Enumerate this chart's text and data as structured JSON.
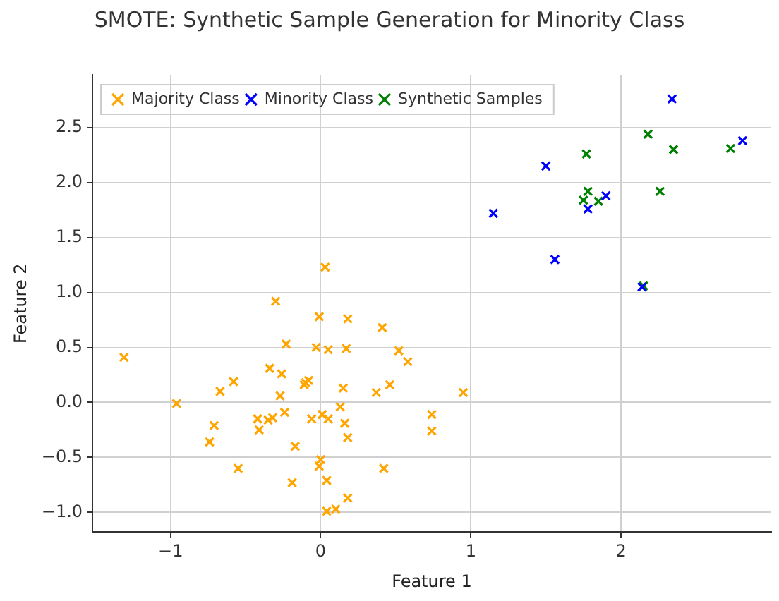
{
  "chart_data": {
    "type": "scatter",
    "title": "SMOTE: Synthetic Sample Generation for Minority Class",
    "xlabel": "Feature 1",
    "ylabel": "Feature 2",
    "xlim": [
      -1.52,
      3.0
    ],
    "ylim": [
      -1.18,
      2.98
    ],
    "xticks": [
      {
        "value": -1,
        "label": "−1"
      },
      0,
      1,
      2
    ],
    "yticks": [
      {
        "value": -1,
        "label": "−1.0"
      },
      {
        "value": -0.5,
        "label": "−0.5"
      },
      {
        "value": 0,
        "label": "0.0"
      },
      0.5,
      {
        "value": 1,
        "label": "1.0"
      },
      1.5,
      {
        "value": 2,
        "label": "2.0"
      },
      2.5
    ],
    "grid": true,
    "legend": "top left",
    "marker": "cross",
    "series": [
      {
        "name": "Majority Class",
        "color": "#ffa500",
        "x": [
          -1.31,
          0.03,
          -0.3,
          -0.01,
          0.18,
          0.41,
          -0.23,
          -0.03,
          0.05,
          0.17,
          0.52,
          0.58,
          -0.34,
          -0.26,
          -0.58,
          -0.67,
          -0.1,
          -0.08,
          -0.11,
          -0.27,
          0.15,
          0.37,
          0.46,
          0.95,
          -0.96,
          0.13,
          -0.24,
          -0.42,
          -0.32,
          -0.35,
          -0.06,
          0.01,
          0.05,
          -0.71,
          -0.41,
          0.16,
          0.74,
          0.74,
          0.18,
          -0.74,
          -0.17,
          0.0,
          -0.01,
          -0.55,
          0.42,
          -0.19,
          0.04,
          0.18,
          0.04,
          0.1
        ],
        "values": [
          0.41,
          1.23,
          0.92,
          0.78,
          0.76,
          0.68,
          0.53,
          0.5,
          0.48,
          0.49,
          0.47,
          0.37,
          0.31,
          0.26,
          0.19,
          0.1,
          0.18,
          0.2,
          0.16,
          0.06,
          0.13,
          0.09,
          0.16,
          0.09,
          -0.01,
          -0.04,
          -0.09,
          -0.15,
          -0.14,
          -0.16,
          -0.15,
          -0.11,
          -0.15,
          -0.21,
          -0.25,
          -0.19,
          -0.11,
          -0.26,
          -0.32,
          -0.36,
          -0.4,
          -0.52,
          -0.58,
          -0.6,
          -0.6,
          -0.73,
          -0.71,
          -0.87,
          -0.99,
          -0.97
        ]
      },
      {
        "name": "Minority Class",
        "color": "#0000ff",
        "x": [
          2.34,
          2.81,
          1.5,
          1.15,
          1.9,
          1.78,
          1.56,
          2.14
        ],
        "values": [
          2.76,
          2.38,
          2.15,
          1.72,
          1.88,
          1.76,
          1.3,
          1.05
        ]
      },
      {
        "name": "Synthetic Samples",
        "color": "#008000",
        "x": [
          2.18,
          1.77,
          2.35,
          2.73,
          1.78,
          1.75,
          1.85,
          2.26,
          2.15
        ],
        "values": [
          2.44,
          2.26,
          2.3,
          2.31,
          1.92,
          1.84,
          1.83,
          1.92,
          1.06
        ]
      }
    ]
  }
}
